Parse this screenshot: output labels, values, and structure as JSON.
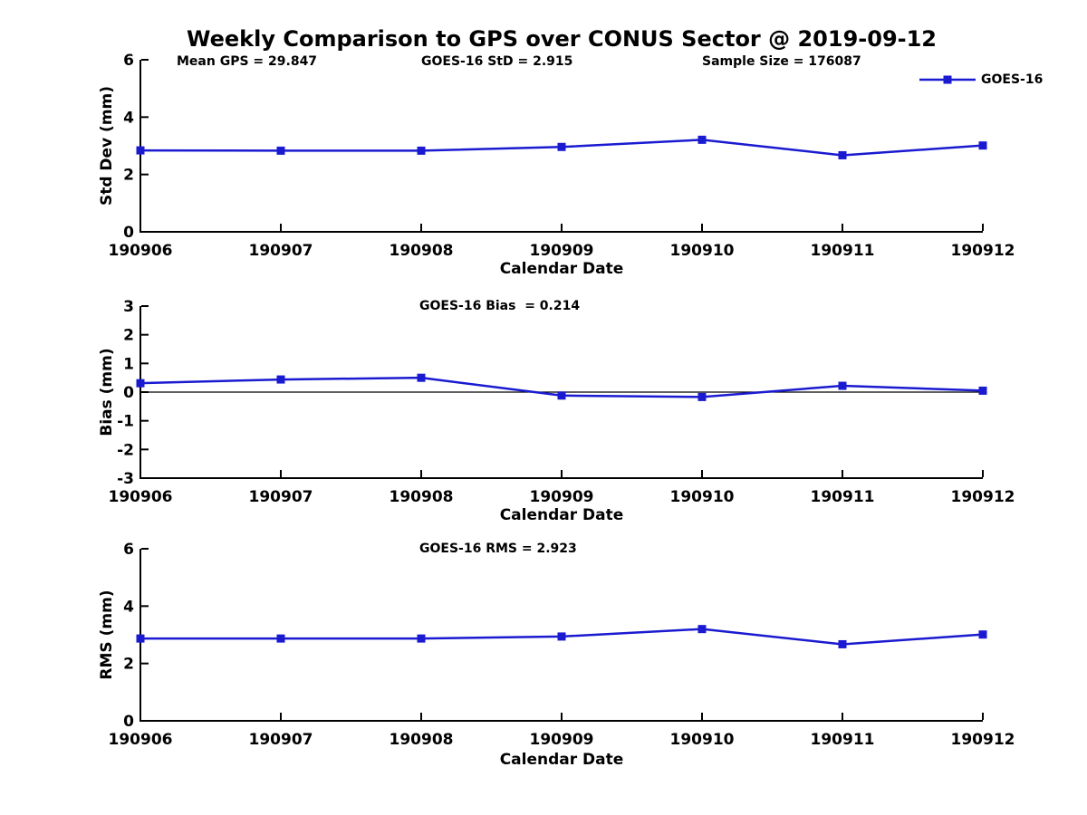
{
  "title": "Weekly Comparison to GPS over CONUS Sector @ 2019-09-12",
  "colors": {
    "series": "#1a1ad1",
    "axis": "#000000"
  },
  "legend": {
    "label": "GOES-16"
  },
  "header_annotations": [
    "Mean GPS = 29.847",
    "GOES-16 StD = 2.915",
    "Sample Size = 176087"
  ],
  "chart_data": [
    {
      "type": "line",
      "name": "std-dev",
      "series_name": "GOES-16",
      "ylabel": "Std Dev (mm)",
      "xlabel": "Calendar Date",
      "categories": [
        "190906",
        "190907",
        "190908",
        "190909",
        "190910",
        "190911",
        "190912"
      ],
      "values": [
        2.84,
        2.83,
        2.83,
        2.96,
        3.21,
        2.67,
        3.01
      ],
      "ylim": [
        0,
        6
      ],
      "yticks": [
        0,
        2,
        4,
        6
      ],
      "annotation": "",
      "zero_line": false,
      "grid": false,
      "legend_position": "top-right"
    },
    {
      "type": "line",
      "name": "bias",
      "series_name": "GOES-16",
      "ylabel": "Bias (mm)",
      "xlabel": "Calendar Date",
      "categories": [
        "190906",
        "190907",
        "190908",
        "190909",
        "190910",
        "190911",
        "190912"
      ],
      "values": [
        0.31,
        0.44,
        0.5,
        -0.12,
        -0.17,
        0.22,
        0.05
      ],
      "ylim": [
        -3,
        3
      ],
      "yticks": [
        -3,
        -2,
        -1,
        0,
        1,
        2,
        3
      ],
      "annotation": "GOES-16 Bias  = 0.214",
      "zero_line": true,
      "grid": false,
      "legend_position": "none"
    },
    {
      "type": "line",
      "name": "rms",
      "series_name": "GOES-16",
      "ylabel": "RMS (mm)",
      "xlabel": "Calendar Date",
      "categories": [
        "190906",
        "190907",
        "190908",
        "190909",
        "190910",
        "190911",
        "190912"
      ],
      "values": [
        2.87,
        2.87,
        2.87,
        2.94,
        3.2,
        2.67,
        3.01
      ],
      "ylim": [
        0,
        6
      ],
      "yticks": [
        0,
        2,
        4,
        6
      ],
      "annotation": "GOES-16 RMS = 2.923",
      "zero_line": false,
      "grid": false,
      "legend_position": "none"
    }
  ]
}
